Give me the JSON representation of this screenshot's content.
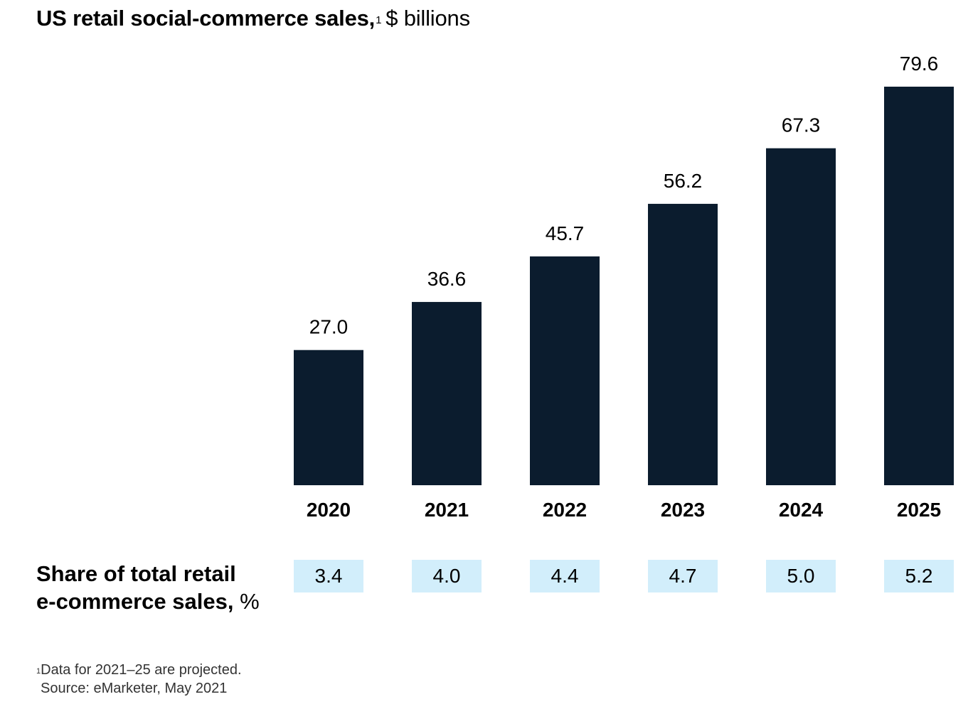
{
  "title": {
    "main": "US retail social-commerce sales,",
    "footnote_marker": "1",
    "unit": "$ billions"
  },
  "chart_data": {
    "type": "bar",
    "categories": [
      "2020",
      "2021",
      "2022",
      "2023",
      "2024",
      "2025"
    ],
    "values": [
      27.0,
      36.6,
      45.7,
      56.2,
      67.3,
      79.6
    ],
    "value_labels": [
      "27.0",
      "36.6",
      "45.7",
      "56.2",
      "67.3",
      "79.6"
    ],
    "title": "US retail social-commerce sales, $ billions",
    "xlabel": "",
    "ylabel": "",
    "ylim": [
      0,
      79.6
    ],
    "grid": false,
    "bar_color": "#0b1c2e",
    "share": {
      "label_line1": "Share of total retail",
      "label_line2": "e-commerce sales,",
      "unit": "%",
      "values": [
        "3.4",
        "4.0",
        "4.4",
        "4.7",
        "5.0",
        "5.2"
      ],
      "box_color": "#d2eefb"
    }
  },
  "footnote": {
    "marker": "1",
    "text": "Data for 2021–25 are projected.",
    "source": "Source: eMarketer, May 2021"
  }
}
